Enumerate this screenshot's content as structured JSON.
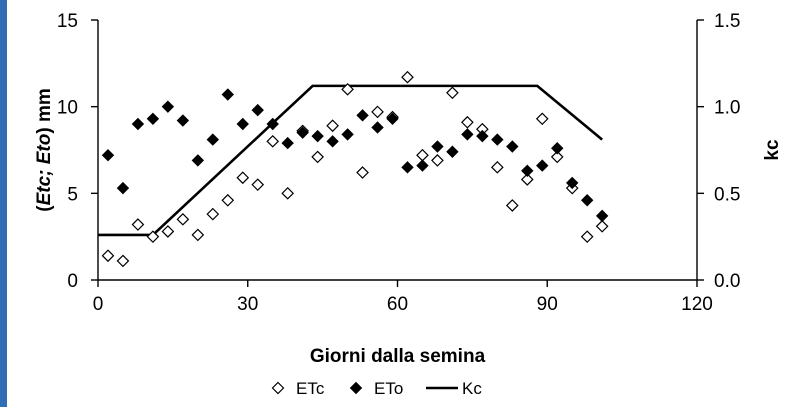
{
  "chart_data": {
    "type": "scatter",
    "xlabel": "Giorni dalla semina",
    "ylabel_left": "(Etc; Eto) mm",
    "ylabel_left_italic": "Etc; Eto",
    "ylabel_left_unit": "mm",
    "ylabel_right": "kc",
    "xlim": [
      0,
      120
    ],
    "ylim_left": [
      0,
      15
    ],
    "ylim_right": [
      0.0,
      1.5
    ],
    "x_ticks": [
      "0",
      "30",
      "60",
      "90",
      "120"
    ],
    "y_left_ticks": [
      "0",
      "5",
      "10",
      "15"
    ],
    "y_right_ticks": [
      "0.0",
      "0.5",
      "1.0",
      "1.5"
    ],
    "grid": false,
    "legend_placement": "bottom-center",
    "series": [
      {
        "name": "ETc",
        "marker": "diamond-open",
        "axis": "left",
        "points": [
          [
            2,
            1.4
          ],
          [
            5,
            1.1
          ],
          [
            8,
            3.2
          ],
          [
            11,
            2.5
          ],
          [
            14,
            2.8
          ],
          [
            17,
            3.5
          ],
          [
            20,
            2.6
          ],
          [
            23,
            3.8
          ],
          [
            26,
            4.6
          ],
          [
            29,
            5.9
          ],
          [
            32,
            5.5
          ],
          [
            35,
            8.0
          ],
          [
            38,
            5.0
          ],
          [
            41,
            8.6
          ],
          [
            44,
            7.1
          ],
          [
            47,
            8.9
          ],
          [
            50,
            11.0
          ],
          [
            53,
            6.2
          ],
          [
            56,
            9.7
          ],
          [
            59,
            9.4
          ],
          [
            62,
            11.7
          ],
          [
            65,
            7.2
          ],
          [
            68,
            6.9
          ],
          [
            71,
            10.8
          ],
          [
            74,
            9.1
          ],
          [
            77,
            8.7
          ],
          [
            80,
            6.5
          ],
          [
            83,
            4.3
          ],
          [
            86,
            5.8
          ],
          [
            89,
            9.3
          ],
          [
            92,
            7.1
          ],
          [
            95,
            5.3
          ],
          [
            98,
            2.5
          ],
          [
            101,
            3.1
          ]
        ]
      },
      {
        "name": "ETo",
        "marker": "diamond-filled",
        "axis": "left",
        "points": [
          [
            2,
            7.2
          ],
          [
            5,
            5.3
          ],
          [
            8,
            9.0
          ],
          [
            11,
            9.3
          ],
          [
            14,
            10.0
          ],
          [
            17,
            9.2
          ],
          [
            20,
            6.9
          ],
          [
            23,
            8.1
          ],
          [
            26,
            10.7
          ],
          [
            29,
            9.0
          ],
          [
            32,
            9.8
          ],
          [
            35,
            9.0
          ],
          [
            38,
            7.9
          ],
          [
            41,
            8.5
          ],
          [
            44,
            8.3
          ],
          [
            47,
            8.0
          ],
          [
            50,
            8.4
          ],
          [
            53,
            9.5
          ],
          [
            56,
            8.8
          ],
          [
            59,
            9.3
          ],
          [
            62,
            6.5
          ],
          [
            65,
            6.6
          ],
          [
            68,
            7.7
          ],
          [
            71,
            7.4
          ],
          [
            74,
            8.4
          ],
          [
            77,
            8.3
          ],
          [
            80,
            8.1
          ],
          [
            83,
            7.7
          ],
          [
            86,
            6.3
          ],
          [
            89,
            6.6
          ],
          [
            92,
            7.6
          ],
          [
            95,
            5.6
          ],
          [
            98,
            4.6
          ],
          [
            101,
            3.7
          ]
        ]
      },
      {
        "name": "Kc",
        "marker": "line",
        "axis": "right",
        "points": [
          [
            0,
            0.26
          ],
          [
            11,
            0.26
          ],
          [
            43,
            1.12
          ],
          [
            88,
            1.12
          ],
          [
            101,
            0.81
          ]
        ]
      }
    ]
  }
}
